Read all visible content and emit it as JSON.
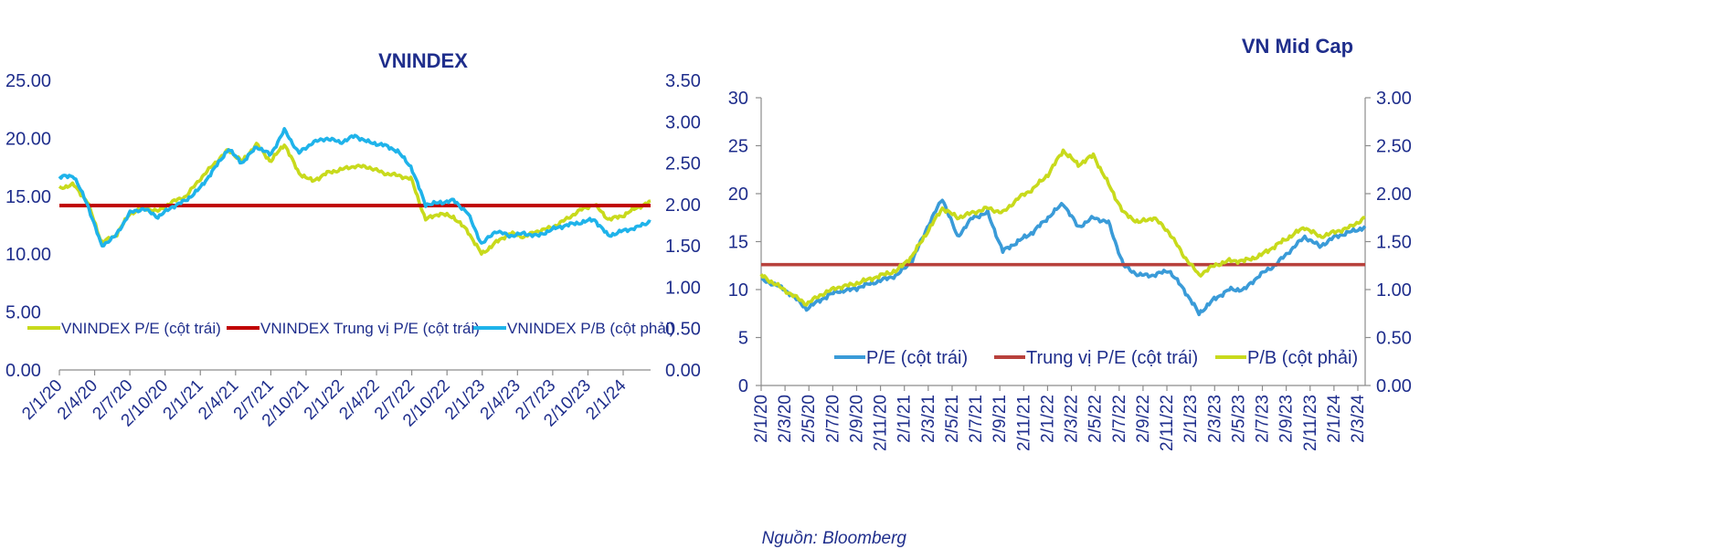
{
  "source": "Nguồn: Bloomberg",
  "chart_data": [
    {
      "type": "line",
      "title": "VNINDEX",
      "xlabel": "",
      "ylabel_left": "",
      "ylabel_right": "",
      "y_left": {
        "min": 0,
        "max": 25,
        "ticks": [
          "0.00",
          "5.00",
          "10.00",
          "15.00",
          "20.00",
          "25.00"
        ]
      },
      "y_right": {
        "min": 0,
        "max": 3.5,
        "ticks": [
          "0.00",
          "0.50",
          "1.00",
          "1.50",
          "2.00",
          "2.50",
          "3.00",
          "3.50"
        ]
      },
      "x_ticks": [
        "2/1/20",
        "2/4/20",
        "2/7/20",
        "2/10/20",
        "2/1/21",
        "2/4/21",
        "2/7/21",
        "2/10/21",
        "2/1/22",
        "2/4/22",
        "2/7/22",
        "2/10/22",
        "2/1/23",
        "2/4/23",
        "2/7/23",
        "2/10/23",
        "2/1/24"
      ],
      "legend_position": "bottom-inside",
      "series": [
        {
          "name": "VNINDEX P/E (cột trái)",
          "axis": "left",
          "color": "#c8da1c",
          "values": [
            15.7,
            16.0,
            14.5,
            11.0,
            11.6,
            13.5,
            14.0,
            13.7,
            14.5,
            15.0,
            16.5,
            17.8,
            19.0,
            18.0,
            19.5,
            18.0,
            19.5,
            17.0,
            16.3,
            17.0,
            17.3,
            17.6,
            17.5,
            17.0,
            16.8,
            16.5,
            13.0,
            13.5,
            13.2,
            12.0,
            10.0,
            11.0,
            11.8,
            11.5,
            12.0,
            12.3,
            13.0,
            13.8,
            14.3,
            13.0,
            13.3,
            14.0,
            14.5
          ]
        },
        {
          "name": "VNINDEX Trung vị P/E (cột trái)",
          "axis": "left",
          "color": "#c00000",
          "constant": 14.2
        },
        {
          "name": "VNINDEX P/B (cột phải)",
          "axis": "right",
          "color": "#1fb3ea",
          "values": [
            2.33,
            2.35,
            2.0,
            1.5,
            1.62,
            1.9,
            1.95,
            1.85,
            1.97,
            2.05,
            2.2,
            2.43,
            2.67,
            2.5,
            2.7,
            2.6,
            2.9,
            2.62,
            2.75,
            2.8,
            2.75,
            2.83,
            2.75,
            2.72,
            2.65,
            2.45,
            2.0,
            2.02,
            2.05,
            1.9,
            1.52,
            1.68,
            1.62,
            1.65,
            1.62,
            1.7,
            1.75,
            1.78,
            1.82,
            1.62,
            1.68,
            1.72,
            1.8
          ]
        }
      ]
    },
    {
      "type": "line",
      "title": "VN Mid Cap",
      "xlabel": "",
      "y_left": {
        "min": 0,
        "max": 30,
        "ticks": [
          "0",
          "5",
          "10",
          "15",
          "20",
          "25",
          "30"
        ]
      },
      "y_right": {
        "min": 0,
        "max": 3,
        "ticks": [
          "0.00",
          "0.50",
          "1.00",
          "1.50",
          "2.00",
          "2.50",
          "3.00"
        ]
      },
      "x_ticks": [
        "2/1/20",
        "2/3/20",
        "2/5/20",
        "2/7/20",
        "2/9/20",
        "2/11/20",
        "2/1/21",
        "2/3/21",
        "2/5/21",
        "2/7/21",
        "2/9/21",
        "2/11/21",
        "2/1/22",
        "2/3/22",
        "2/5/22",
        "2/7/22",
        "2/9/22",
        "2/11/22",
        "2/1/23",
        "2/3/23",
        "2/5/23",
        "2/7/23",
        "2/9/23",
        "2/11/23",
        "2/1/24",
        "2/3/24"
      ],
      "legend_position": "bottom-inside",
      "series": [
        {
          "name": "P/E (cột trái)",
          "axis": "left",
          "color": "#3a9bd8",
          "values": [
            11.0,
            10.5,
            9.5,
            8.0,
            9.0,
            9.8,
            10.0,
            10.5,
            11.0,
            11.5,
            13.0,
            16.5,
            19.5,
            15.5,
            17.5,
            18.0,
            14.0,
            15.0,
            16.0,
            17.5,
            19.0,
            16.5,
            17.5,
            17.0,
            12.5,
            11.5,
            11.5,
            12.0,
            10.0,
            7.5,
            9.0,
            10.0,
            10.0,
            11.5,
            12.5,
            14.0,
            15.5,
            14.5,
            15.5,
            16.0,
            16.5
          ]
        },
        {
          "name": "Trung vị P/E (cột trái)",
          "axis": "left",
          "color": "#b8413c",
          "constant": 12.6
        },
        {
          "name": "P/B (cột phải)",
          "axis": "right",
          "color": "#c8da1c",
          "values": [
            1.15,
            1.05,
            0.95,
            0.85,
            0.95,
            1.02,
            1.05,
            1.1,
            1.15,
            1.2,
            1.35,
            1.6,
            1.85,
            1.75,
            1.8,
            1.85,
            1.8,
            1.95,
            2.05,
            2.2,
            2.45,
            2.3,
            2.4,
            2.1,
            1.8,
            1.7,
            1.75,
            1.6,
            1.35,
            1.15,
            1.25,
            1.3,
            1.3,
            1.35,
            1.45,
            1.55,
            1.65,
            1.55,
            1.6,
            1.65,
            1.75
          ]
        }
      ]
    }
  ]
}
